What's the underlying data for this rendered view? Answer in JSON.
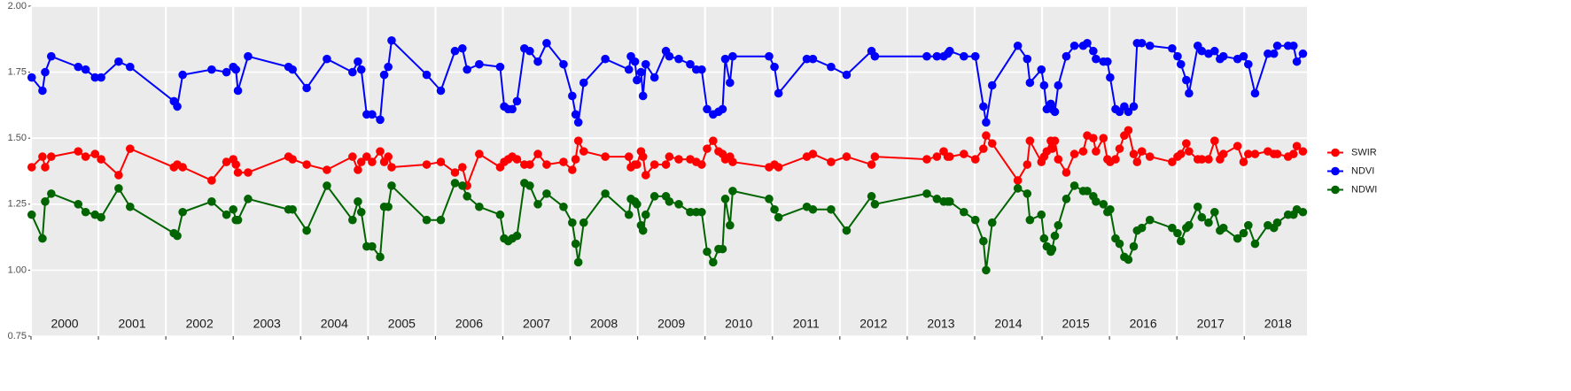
{
  "chart_data": {
    "type": "line",
    "x": [
      2000.01,
      2000.17,
      2000.21,
      2000.3,
      2000.7,
      2000.81,
      2000.95,
      2001.04,
      2001.3,
      2001.47,
      2002.12,
      2002.17,
      2002.25,
      2002.68,
      2002.9,
      2003.0,
      2003.04,
      2003.07,
      2003.22,
      2003.82,
      2003.88,
      2004.09,
      2004.39,
      2004.77,
      2004.85,
      2004.9,
      2004.98,
      2005.06,
      2005.18,
      2005.24,
      2005.3,
      2005.35,
      2005.87,
      2006.08,
      2006.29,
      2006.4,
      2006.47,
      2006.65,
      2006.96,
      2007.02,
      2007.08,
      2007.14,
      2007.21,
      2007.32,
      2007.4,
      2007.52,
      2007.65,
      2007.9,
      2008.03,
      2008.08,
      2008.12,
      2008.2,
      2008.52,
      2008.87,
      2008.9,
      2008.96,
      2008.99,
      2009.05,
      2009.08,
      2009.12,
      2009.25,
      2009.42,
      2009.47,
      2009.61,
      2009.78,
      2009.87,
      2009.95,
      2010.03,
      2010.12,
      2010.2,
      2010.26,
      2010.3,
      2010.37,
      2010.41,
      2010.95,
      2011.03,
      2011.09,
      2011.51,
      2011.6,
      2011.87,
      2012.1,
      2012.47,
      2012.52,
      2013.29,
      2013.44,
      2013.54,
      2013.6,
      2013.63,
      2013.84,
      2014.01,
      2014.13,
      2014.17,
      2014.26,
      2014.64,
      2014.78,
      2014.82,
      2014.99,
      2015.03,
      2015.07,
      2015.13,
      2015.15,
      2015.19,
      2015.24,
      2015.36,
      2015.48,
      2015.61,
      2015.67,
      2015.76,
      2015.8,
      2015.91,
      2015.97,
      2016.01,
      2016.09,
      2016.15,
      2016.22,
      2016.28,
      2016.36,
      2016.41,
      2016.48,
      2016.6,
      2016.93,
      2017.01,
      2017.06,
      2017.14,
      2017.18,
      2017.31,
      2017.37,
      2017.47,
      2017.56,
      2017.64,
      2017.69,
      2017.9,
      2017.99,
      2018.06,
      2018.16,
      2018.35,
      2018.44,
      2018.49,
      2018.65,
      2018.73,
      2018.78,
      2018.87
    ],
    "series": [
      {
        "name": "SWIR",
        "color": "#ff0000",
        "values": [
          1.39,
          1.43,
          1.39,
          1.43,
          1.45,
          1.43,
          1.44,
          1.42,
          1.36,
          1.46,
          1.39,
          1.4,
          1.39,
          1.34,
          1.41,
          1.42,
          1.4,
          1.37,
          1.37,
          1.43,
          1.42,
          1.4,
          1.38,
          1.43,
          1.38,
          1.41,
          1.43,
          1.41,
          1.45,
          1.41,
          1.43,
          1.39,
          1.4,
          1.41,
          1.37,
          1.39,
          1.32,
          1.44,
          1.39,
          1.41,
          1.42,
          1.43,
          1.42,
          1.4,
          1.4,
          1.44,
          1.4,
          1.41,
          1.38,
          1.42,
          1.49,
          1.45,
          1.43,
          1.43,
          1.39,
          1.4,
          1.4,
          1.45,
          1.43,
          1.36,
          1.4,
          1.4,
          1.43,
          1.42,
          1.42,
          1.41,
          1.4,
          1.46,
          1.49,
          1.45,
          1.44,
          1.42,
          1.43,
          1.41,
          1.39,
          1.4,
          1.39,
          1.43,
          1.44,
          1.41,
          1.43,
          1.4,
          1.43,
          1.42,
          1.43,
          1.45,
          1.43,
          1.43,
          1.44,
          1.42,
          1.46,
          1.51,
          1.48,
          1.34,
          1.4,
          1.49,
          1.41,
          1.43,
          1.45,
          1.49,
          1.46,
          1.49,
          1.42,
          1.37,
          1.44,
          1.45,
          1.51,
          1.5,
          1.45,
          1.5,
          1.42,
          1.41,
          1.42,
          1.46,
          1.51,
          1.53,
          1.44,
          1.41,
          1.45,
          1.43,
          1.41,
          1.43,
          1.44,
          1.48,
          1.45,
          1.42,
          1.42,
          1.42,
          1.49,
          1.42,
          1.44,
          1.47,
          1.41,
          1.44,
          1.44,
          1.45,
          1.44,
          1.44,
          1.43,
          1.44,
          1.47,
          1.45
        ]
      },
      {
        "name": "NDVI",
        "color": "#0000ff",
        "values": [
          1.73,
          1.68,
          1.75,
          1.81,
          1.77,
          1.76,
          1.73,
          1.73,
          1.79,
          1.77,
          1.64,
          1.62,
          1.74,
          1.76,
          1.75,
          1.77,
          1.76,
          1.68,
          1.81,
          1.77,
          1.76,
          1.69,
          1.8,
          1.75,
          1.79,
          1.76,
          1.59,
          1.59,
          1.57,
          1.74,
          1.77,
          1.87,
          1.74,
          1.68,
          1.83,
          1.84,
          1.76,
          1.78,
          1.77,
          1.62,
          1.61,
          1.61,
          1.64,
          1.84,
          1.83,
          1.79,
          1.86,
          1.78,
          1.66,
          1.59,
          1.56,
          1.71,
          1.8,
          1.76,
          1.81,
          1.79,
          1.72,
          1.75,
          1.66,
          1.78,
          1.73,
          1.83,
          1.81,
          1.8,
          1.78,
          1.76,
          1.76,
          1.61,
          1.59,
          1.6,
          1.61,
          1.8,
          1.71,
          1.81,
          1.81,
          1.77,
          1.67,
          1.8,
          1.8,
          1.77,
          1.74,
          1.83,
          1.81,
          1.81,
          1.81,
          1.81,
          1.82,
          1.83,
          1.81,
          1.81,
          1.62,
          1.56,
          1.7,
          1.85,
          1.8,
          1.71,
          1.76,
          1.7,
          1.61,
          1.63,
          1.61,
          1.6,
          1.7,
          1.81,
          1.85,
          1.85,
          1.86,
          1.83,
          1.8,
          1.79,
          1.79,
          1.73,
          1.61,
          1.6,
          1.62,
          1.6,
          1.62,
          1.86,
          1.86,
          1.85,
          1.84,
          1.81,
          1.78,
          1.72,
          1.67,
          1.85,
          1.83,
          1.82,
          1.83,
          1.8,
          1.81,
          1.8,
          1.81,
          1.78,
          1.67,
          1.82,
          1.82,
          1.85,
          1.85,
          1.85,
          1.79,
          1.82
        ]
      },
      {
        "name": "NDWI",
        "color": "#006400",
        "values": [
          1.21,
          1.12,
          1.26,
          1.29,
          1.25,
          1.22,
          1.21,
          1.2,
          1.31,
          1.24,
          1.14,
          1.13,
          1.22,
          1.26,
          1.21,
          1.23,
          1.19,
          1.19,
          1.27,
          1.23,
          1.23,
          1.15,
          1.32,
          1.19,
          1.26,
          1.22,
          1.09,
          1.09,
          1.05,
          1.24,
          1.24,
          1.32,
          1.19,
          1.19,
          1.33,
          1.32,
          1.28,
          1.24,
          1.21,
          1.12,
          1.11,
          1.12,
          1.13,
          1.33,
          1.32,
          1.25,
          1.29,
          1.24,
          1.18,
          1.1,
          1.03,
          1.18,
          1.29,
          1.21,
          1.27,
          1.26,
          1.25,
          1.17,
          1.15,
          1.21,
          1.28,
          1.28,
          1.26,
          1.25,
          1.22,
          1.22,
          1.22,
          1.07,
          1.03,
          1.08,
          1.08,
          1.27,
          1.17,
          1.3,
          1.27,
          1.23,
          1.2,
          1.24,
          1.23,
          1.23,
          1.15,
          1.28,
          1.25,
          1.29,
          1.27,
          1.26,
          1.26,
          1.26,
          1.22,
          1.19,
          1.11,
          1.0,
          1.18,
          1.31,
          1.29,
          1.19,
          1.21,
          1.12,
          1.09,
          1.07,
          1.08,
          1.13,
          1.17,
          1.27,
          1.32,
          1.3,
          1.3,
          1.28,
          1.26,
          1.25,
          1.22,
          1.23,
          1.12,
          1.1,
          1.05,
          1.04,
          1.09,
          1.15,
          1.16,
          1.19,
          1.16,
          1.14,
          1.11,
          1.16,
          1.17,
          1.24,
          1.2,
          1.18,
          1.22,
          1.15,
          1.16,
          1.12,
          1.14,
          1.17,
          1.1,
          1.17,
          1.16,
          1.18,
          1.21,
          1.21,
          1.23,
          1.22
        ]
      }
    ],
    "xlim": [
      2000,
      2018.93
    ],
    "xticks": [
      {
        "value": 2000.5,
        "label": "2000"
      },
      {
        "value": 2001.5,
        "label": "2001"
      },
      {
        "value": 2002.5,
        "label": "2002"
      },
      {
        "value": 2003.5,
        "label": "2003"
      },
      {
        "value": 2004.5,
        "label": "2004"
      },
      {
        "value": 2005.5,
        "label": "2005"
      },
      {
        "value": 2006.5,
        "label": "2006"
      },
      {
        "value": 2007.5,
        "label": "2007"
      },
      {
        "value": 2008.5,
        "label": "2008"
      },
      {
        "value": 2009.5,
        "label": "2009"
      },
      {
        "value": 2010.5,
        "label": "2010"
      },
      {
        "value": 2011.5,
        "label": "2011"
      },
      {
        "value": 2012.5,
        "label": "2012"
      },
      {
        "value": 2013.5,
        "label": "2013"
      },
      {
        "value": 2014.5,
        "label": "2014"
      },
      {
        "value": 2015.5,
        "label": "2015"
      },
      {
        "value": 2016.5,
        "label": "2016"
      },
      {
        "value": 2017.5,
        "label": "2017"
      },
      {
        "value": 2018.5,
        "label": "2018"
      }
    ],
    "xgrid": [
      2000,
      2001,
      2002,
      2003,
      2004,
      2005,
      2006,
      2007,
      2008,
      2009,
      2010,
      2011,
      2012,
      2013,
      2014,
      2015,
      2016,
      2017,
      2018
    ],
    "ylim": [
      0.75,
      2.0
    ],
    "yticks": [
      {
        "value": 0.75,
        "label": "0.75"
      },
      {
        "value": 1,
        "label": "1.00"
      },
      {
        "value": 1.25,
        "label": "1.25"
      },
      {
        "value": 1.5,
        "label": "1.50"
      },
      {
        "value": 1.75,
        "label": "1.75"
      },
      {
        "value": 2,
        "label": "2.00"
      }
    ],
    "grid": true,
    "legend": "right"
  }
}
